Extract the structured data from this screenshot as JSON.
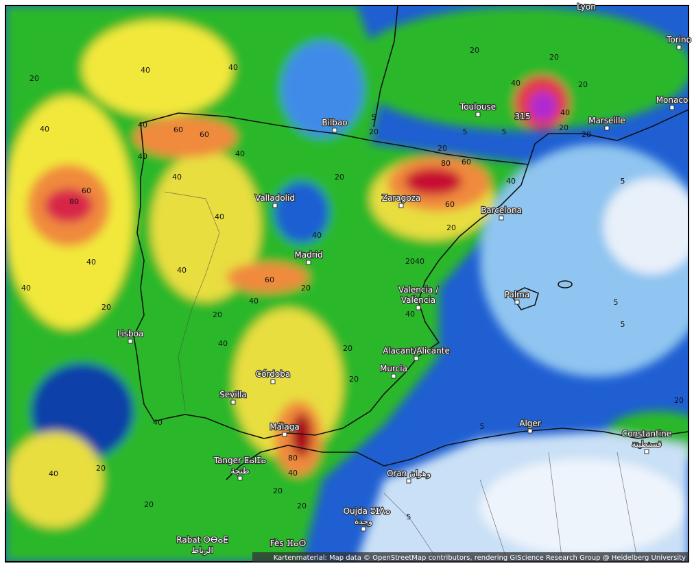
{
  "map": {
    "cities": [
      "Lyon",
      "Torino",
      "Toulouse",
      "Monaco",
      "Marseille",
      "Bilbao",
      "315",
      "Valladolid",
      "Zaragoza",
      "Barcelona",
      "Madrid",
      "Palma",
      "Valencia /",
      "València",
      "Lisboa",
      "Alacant/Alicante",
      "Murcia",
      "Córdoba",
      "Sevilla",
      "Málaga",
      "Alger",
      "Constantine",
      "قسنطينة",
      "Tanger ⵟⴰⵏⵊⴰ",
      "طنجة",
      "Oran وهران",
      "Oujda ⵓⵊⴷⴰ",
      "وجدة",
      "Rabat ⵔⴱⴰⵟ",
      "الرباط",
      "Fès ⴼⴰⵙ"
    ],
    "contour_labels": [
      40,
      40,
      20,
      40,
      40,
      60,
      60,
      40,
      40,
      40,
      60,
      80,
      40,
      20,
      80,
      60,
      20,
      40,
      60,
      20,
      20,
      40,
      40,
      60,
      40,
      20,
      40,
      40,
      40,
      20,
      20,
      40,
      40,
      20,
      20,
      40,
      80,
      40,
      40,
      20,
      20,
      20,
      20,
      20,
      5,
      20,
      20,
      40,
      20,
      40,
      20,
      20,
      5,
      5,
      5,
      5,
      5,
      20,
      5,
      5
    ],
    "attribution": "Kartenmaterial: Map data © OpenStreetMap contributors, rendering GIScience Research Group @ Heidelberg University"
  }
}
